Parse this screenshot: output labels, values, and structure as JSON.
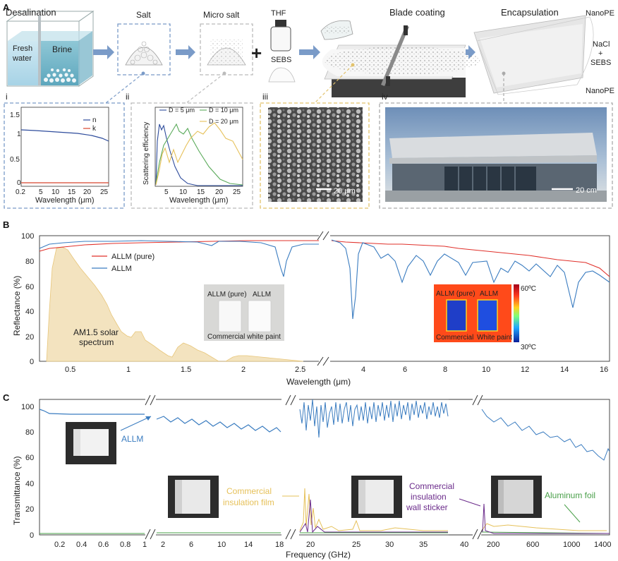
{
  "panel_a": {
    "letter": "A",
    "steps": {
      "desalination": "Desalination",
      "fresh_water": "Fresh water",
      "brine": "Brine",
      "salt": "Salt",
      "micro_salt": "Micro salt",
      "thf": "THF",
      "sebs": "SEBS",
      "blade_coating": "Blade coating",
      "encapsulation": "Encapsulation",
      "nanope_top": "NanoPE",
      "nacl": "NaCl",
      "plus": "+",
      "sebs_layer": "SEBS",
      "nanope_bottom": "NanoPE"
    },
    "sub_i": {
      "roman": "i",
      "legend": [
        "n",
        "k"
      ],
      "xlabel": "Wavelength (μm)",
      "xticks": [
        "0.2",
        "5",
        "10",
        "15",
        "20",
        "25"
      ],
      "yticks": [
        "0",
        "0.5",
        "1",
        "1.5"
      ]
    },
    "sub_ii": {
      "roman": "ii",
      "legend": [
        "D = 5 μm",
        "D = 10 μm",
        "D = 20 μm"
      ],
      "xlabel": "Wavelength (μm)",
      "ylabel": "Scattering efficiency",
      "xticks": [
        "5",
        "10",
        "15",
        "20",
        "25"
      ]
    },
    "sub_iii": {
      "roman": "iii",
      "scale": "20 μm"
    },
    "sub_iv": {
      "roman": "iv",
      "scale": "20 cm"
    }
  },
  "panel_b": {
    "letter": "B",
    "legend": [
      "ALLM (pure)",
      "ALLM"
    ],
    "ylabel": "Reflectance (%)",
    "xlabel": "Wavelength (μm)",
    "xticks_left": [
      "0.5",
      "1",
      "1.5",
      "2",
      "2.5"
    ],
    "xticks_right": [
      "4",
      "6",
      "8",
      "10",
      "12",
      "14",
      "16"
    ],
    "yticks": [
      "0",
      "20",
      "40",
      "60",
      "80",
      "100"
    ],
    "solar_label_1": "AM1.5 solar",
    "solar_label_2": "spectrum",
    "photo_left": {
      "top_a": "ALLM (pure)",
      "top_b": "ALLM",
      "bottom": "Commercial white paint"
    },
    "photo_right": {
      "top_a": "ALLM (pure)",
      "top_b": "ALLM",
      "bottom_a": "Commercial",
      "bottom_b": "White paint",
      "tmax": "60ºC",
      "tmin": "30ºC"
    }
  },
  "panel_c": {
    "letter": "C",
    "ylabel": "Transmittance (%)",
    "xlabel": "Frequency (GHz)",
    "yticks": [
      "0",
      "20",
      "40",
      "60",
      "80",
      "100"
    ],
    "xticks_1": [
      "0.2",
      "0.4",
      "0.6",
      "0.8",
      "1"
    ],
    "xticks_2": [
      "2",
      "6",
      "10",
      "14",
      "18"
    ],
    "xticks_3": [
      "20",
      "25",
      "30",
      "35",
      "40"
    ],
    "xticks_4": [
      "200",
      "600",
      "1000",
      "1400"
    ],
    "allm": "ALLM",
    "film_1": "Commercial",
    "film_2": "insulation film",
    "sticker_1": "Commercial",
    "sticker_2": "insulation",
    "sticker_3": "wall sticker",
    "foil": "Aluminum foil"
  },
  "colors": {
    "allm_blue": "#3a7cc0",
    "pure_red": "#e0302a",
    "solar_fill": "#f3e3bf",
    "solar_line": "#e8c67a",
    "green": "#4aa04a",
    "purple": "#6a2a8a",
    "gold": "#e6c15a"
  }
}
